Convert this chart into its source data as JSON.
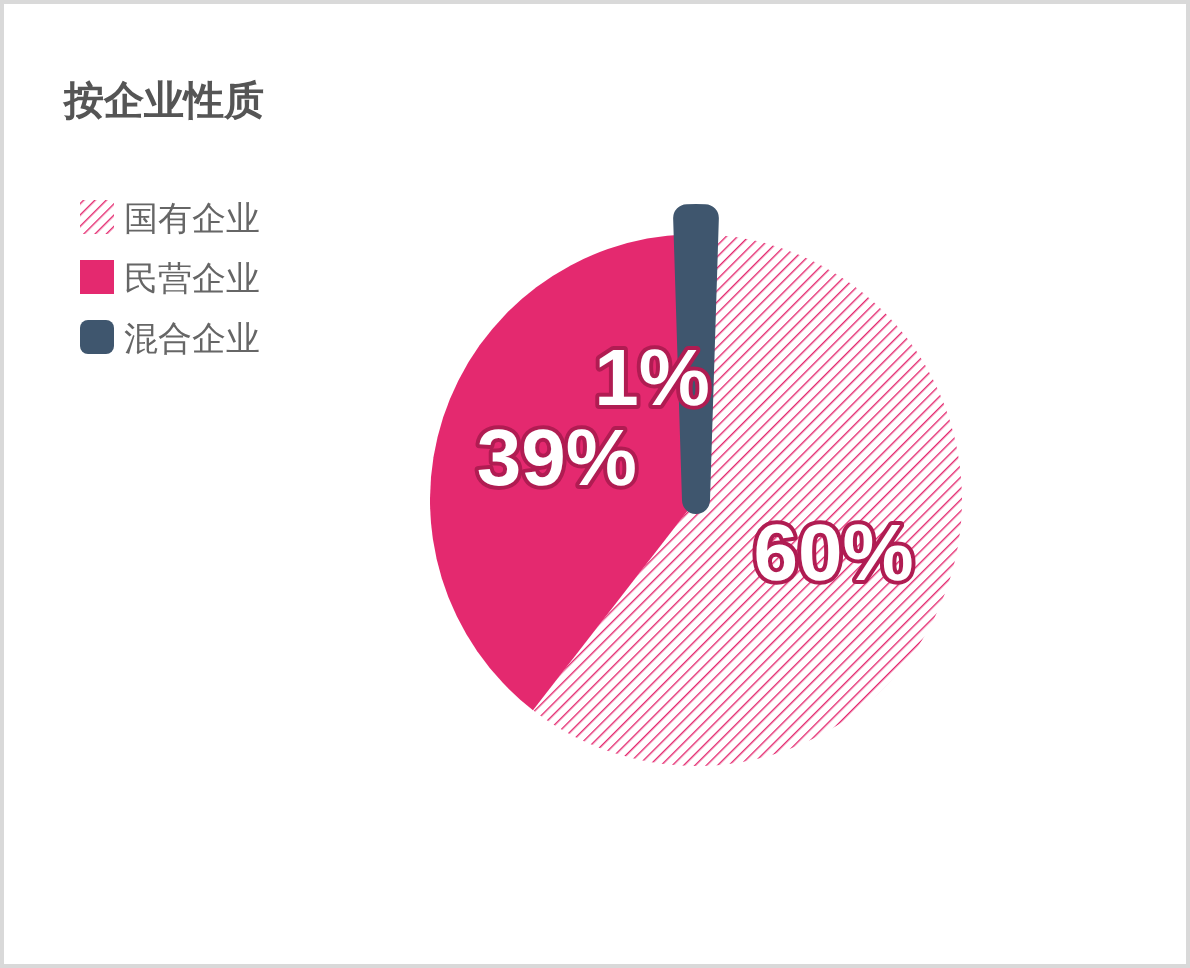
{
  "chart_data": {
    "type": "pie",
    "title": "按企业性质",
    "categories": [
      "国有企业",
      "民营企业",
      "混合企业"
    ],
    "values": [
      60,
      39,
      1
    ],
    "value_labels": [
      "60%",
      "39%",
      "1%"
    ],
    "colors": [
      "#e4296f",
      "#e4296f",
      "#3f566e"
    ],
    "legend": "top left"
  }
}
